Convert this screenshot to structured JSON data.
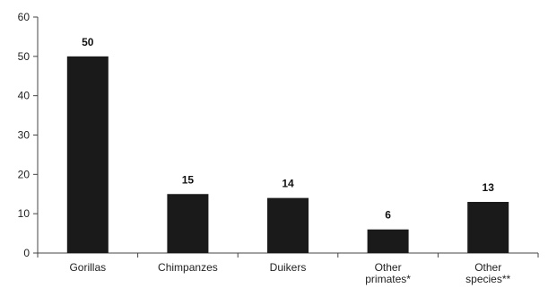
{
  "chart_data": {
    "type": "bar",
    "title": "",
    "xlabel": "",
    "ylabel": "",
    "categories": [
      [
        "Gorillas"
      ],
      [
        "Chimpanzes"
      ],
      [
        "Duikers"
      ],
      [
        "Other",
        "primates*"
      ],
      [
        "Other",
        "species**"
      ]
    ],
    "values": [
      50,
      15,
      14,
      6,
      13
    ],
    "data_labels": [
      "50",
      "15",
      "14",
      "6",
      "13"
    ],
    "ylim": [
      0,
      60
    ],
    "yticks": [
      0,
      10,
      20,
      30,
      40,
      50,
      60
    ],
    "grid": false,
    "legend": "none",
    "bar_color": "#1a1a1a",
    "axis_color": "#444444"
  }
}
